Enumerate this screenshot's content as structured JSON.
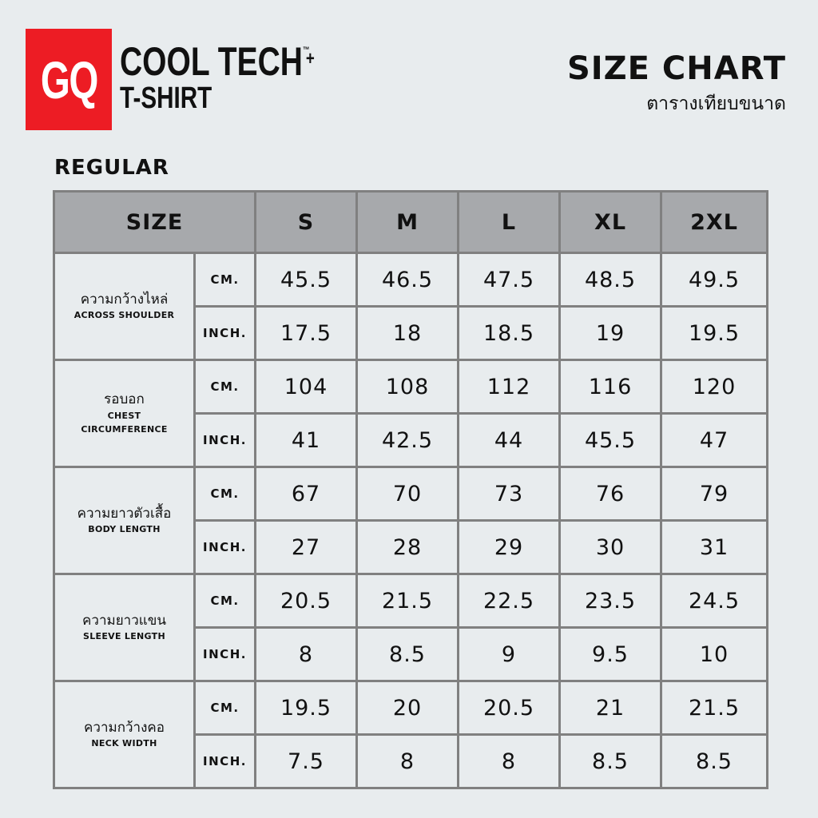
{
  "brand": {
    "logo": "GQ",
    "product_line1": "COOL TECH",
    "tm": "™",
    "plus": "+",
    "product_line2": "T-SHIRT",
    "logo_color": "#ed1c24"
  },
  "title": {
    "en": "SIZE CHART",
    "th": "ตารางเทียบขนาด"
  },
  "fit": "REGULAR",
  "table": {
    "header": {
      "size_label": "SIZE",
      "sizes": [
        "S",
        "M",
        "L",
        "XL",
        "2XL"
      ]
    },
    "measurements": [
      {
        "th": "ความกว้างไหล่",
        "en": "ACROSS SHOULDER",
        "rows": [
          {
            "unit": "CM.",
            "values": [
              "45.5",
              "46.5",
              "47.5",
              "48.5",
              "49.5"
            ]
          },
          {
            "unit": "INCH.",
            "values": [
              "17.5",
              "18",
              "18.5",
              "19",
              "19.5"
            ]
          }
        ]
      },
      {
        "th": "รอบอก",
        "en": "CHEST\nCIRCUMFERENCE",
        "rows": [
          {
            "unit": "CM.",
            "values": [
              "104",
              "108",
              "112",
              "116",
              "120"
            ]
          },
          {
            "unit": "INCH.",
            "values": [
              "41",
              "42.5",
              "44",
              "45.5",
              "47"
            ]
          }
        ]
      },
      {
        "th": "ความยาวตัวเสื้อ",
        "en": "BODY LENGTH",
        "rows": [
          {
            "unit": "CM.",
            "values": [
              "67",
              "70",
              "73",
              "76",
              "79"
            ]
          },
          {
            "unit": "INCH.",
            "values": [
              "27",
              "28",
              "29",
              "30",
              "31"
            ]
          }
        ]
      },
      {
        "th": "ความยาวแขน",
        "en": "SLEEVE LENGTH",
        "rows": [
          {
            "unit": "CM.",
            "values": [
              "20.5",
              "21.5",
              "22.5",
              "23.5",
              "24.5"
            ]
          },
          {
            "unit": "INCH.",
            "values": [
              "8",
              "8.5",
              "9",
              "9.5",
              "10"
            ]
          }
        ]
      },
      {
        "th": "ความกว้างคอ",
        "en": "NECK WIDTH",
        "rows": [
          {
            "unit": "CM.",
            "values": [
              "19.5",
              "20",
              "20.5",
              "21",
              "21.5"
            ]
          },
          {
            "unit": "INCH.",
            "values": [
              "7.5",
              "8",
              "8",
              "8.5",
              "8.5"
            ]
          }
        ]
      }
    ]
  }
}
